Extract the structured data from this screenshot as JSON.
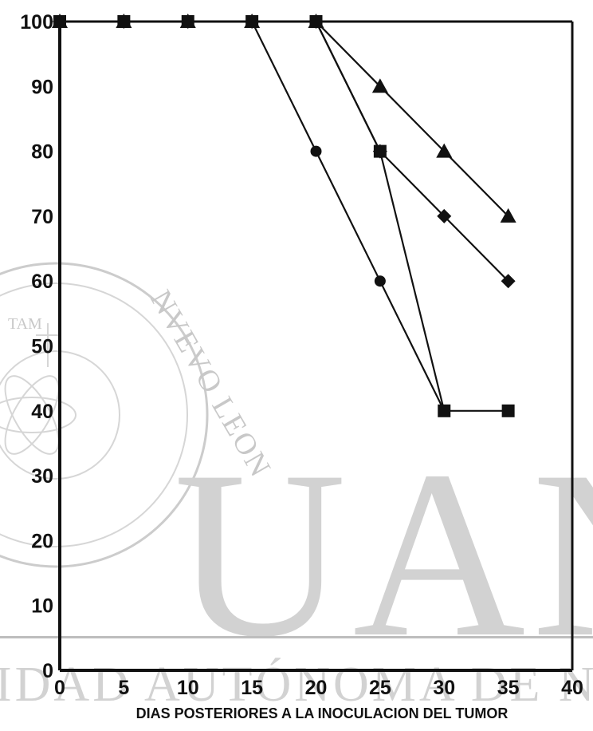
{
  "watermark": {
    "big_text": "UAN",
    "band_text": "IDAD AUTÓNOMA DE NUE",
    "seal_text": "NVEVO LEON",
    "seal_inner": "TAM"
  },
  "chart_data": {
    "type": "line",
    "title": "",
    "xlabel": "DIAS POSTERIORES A LA INOCULACION DEL TUMOR",
    "ylabel": "",
    "xlim": [
      0,
      40
    ],
    "ylim": [
      0,
      100
    ],
    "xticks": [
      0,
      5,
      10,
      15,
      20,
      25,
      30,
      35,
      40
    ],
    "yticks": [
      0,
      10,
      20,
      30,
      40,
      50,
      60,
      70,
      80,
      90,
      100
    ],
    "grid": false,
    "line_color": "#111111",
    "series": [
      {
        "marker": "circle",
        "x": [
          0,
          5,
          10,
          15,
          20,
          25,
          30
        ],
        "y": [
          100,
          100,
          100,
          100,
          80,
          60,
          40
        ]
      },
      {
        "marker": "square",
        "x": [
          0,
          5,
          10,
          15,
          20,
          25,
          30,
          35
        ],
        "y": [
          100,
          100,
          100,
          100,
          100,
          80,
          40,
          40
        ]
      },
      {
        "marker": "diamond",
        "x": [
          0,
          5,
          10,
          15,
          20,
          25,
          30,
          35
        ],
        "y": [
          100,
          100,
          100,
          100,
          100,
          80,
          70,
          60
        ]
      },
      {
        "marker": "triangle",
        "x": [
          0,
          5,
          10,
          15,
          20,
          25,
          30,
          35
        ],
        "y": [
          100,
          100,
          100,
          100,
          100,
          90,
          80,
          70
        ]
      }
    ]
  }
}
